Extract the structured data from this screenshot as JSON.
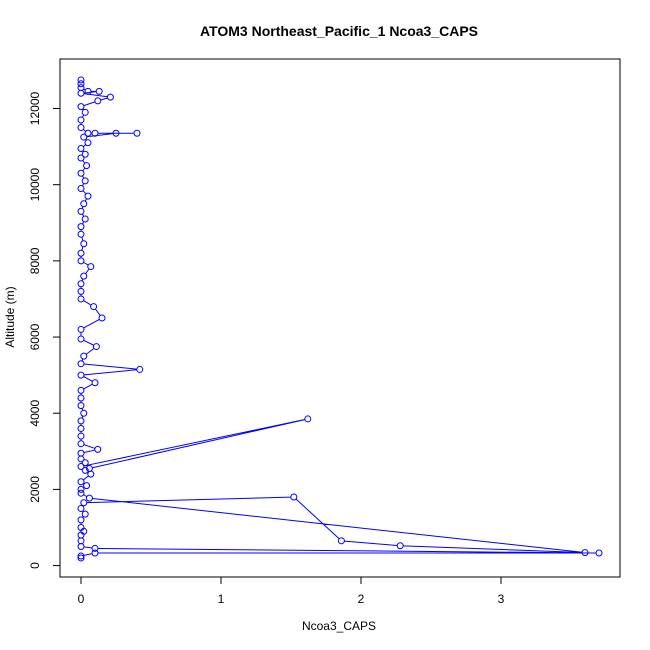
{
  "chart_data": {
    "type": "line",
    "title": "ATOM3 Northeast_Pacific_1 Ncoa3_CAPS",
    "xlabel": "Ncoa3_CAPS",
    "ylabel": "Altitude (m)",
    "xlim": [
      -0.15,
      3.85
    ],
    "ylim": [
      -300,
      13300
    ],
    "x_ticks": [
      0,
      1,
      2,
      3
    ],
    "y_ticks": [
      0,
      2000,
      4000,
      6000,
      8000,
      10000,
      12000
    ],
    "grid": false,
    "color": "#0000ff",
    "markers": "open-circle",
    "series": [
      {
        "points": [
          [
            0.0,
            200
          ],
          [
            0.0,
            250
          ],
          [
            0.1,
            330
          ],
          [
            3.7,
            330
          ],
          [
            0.1,
            450
          ],
          [
            0.0,
            500
          ],
          [
            0.0,
            650
          ],
          [
            0.0,
            800
          ],
          [
            0.02,
            900
          ],
          [
            0.0,
            1000
          ],
          [
            0.0,
            1200
          ],
          [
            0.03,
            1350
          ],
          [
            0.0,
            1500
          ],
          [
            0.02,
            1650
          ],
          [
            1.52,
            1800
          ],
          [
            1.86,
            650
          ],
          [
            2.28,
            520
          ],
          [
            3.6,
            340
          ],
          [
            0.06,
            1770
          ],
          [
            0.0,
            1900
          ],
          [
            0.0,
            2000
          ],
          [
            0.04,
            2100
          ],
          [
            0.0,
            2200
          ],
          [
            0.07,
            2400
          ],
          [
            0.03,
            2500
          ],
          [
            0.0,
            2600
          ],
          [
            1.62,
            3850
          ],
          [
            0.06,
            2550
          ],
          [
            0.03,
            2700
          ],
          [
            0.0,
            2800
          ],
          [
            0.0,
            2950
          ],
          [
            0.12,
            3050
          ],
          [
            0.0,
            3200
          ],
          [
            0.0,
            3400
          ],
          [
            0.0,
            3600
          ],
          [
            0.0,
            3800
          ],
          [
            0.02,
            4000
          ],
          [
            0.0,
            4200
          ],
          [
            0.0,
            4400
          ],
          [
            0.0,
            4600
          ],
          [
            0.1,
            4800
          ],
          [
            0.0,
            5000
          ],
          [
            0.42,
            5150
          ],
          [
            0.0,
            5300
          ],
          [
            0.02,
            5500
          ],
          [
            0.11,
            5750
          ],
          [
            0.0,
            5950
          ],
          [
            0.0,
            6200
          ],
          [
            0.15,
            6500
          ],
          [
            0.09,
            6800
          ],
          [
            0.0,
            7000
          ],
          [
            0.0,
            7200
          ],
          [
            0.0,
            7400
          ],
          [
            0.02,
            7600
          ],
          [
            0.07,
            7850
          ],
          [
            0.0,
            8000
          ],
          [
            0.0,
            8200
          ],
          [
            0.02,
            8450
          ],
          [
            0.0,
            8700
          ],
          [
            0.0,
            8900
          ],
          [
            0.03,
            9100
          ],
          [
            0.0,
            9300
          ],
          [
            0.02,
            9500
          ],
          [
            0.05,
            9700
          ],
          [
            0.0,
            9900
          ],
          [
            0.03,
            10100
          ],
          [
            0.0,
            10300
          ],
          [
            0.04,
            10500
          ],
          [
            0.0,
            10700
          ],
          [
            0.03,
            10800
          ],
          [
            0.0,
            10950
          ],
          [
            0.05,
            11100
          ],
          [
            0.02,
            11250
          ],
          [
            0.25,
            11350
          ],
          [
            0.4,
            11350
          ],
          [
            0.1,
            11350
          ],
          [
            0.05,
            11350
          ],
          [
            0.0,
            11500
          ],
          [
            0.0,
            11700
          ],
          [
            0.03,
            11900
          ],
          [
            0.0,
            12050
          ],
          [
            0.12,
            12200
          ],
          [
            0.21,
            12300
          ],
          [
            0.0,
            12400
          ],
          [
            0.13,
            12450
          ],
          [
            0.05,
            12450
          ],
          [
            0.0,
            12550
          ],
          [
            0.0,
            12650
          ],
          [
            0.0,
            12750
          ]
        ]
      }
    ]
  }
}
